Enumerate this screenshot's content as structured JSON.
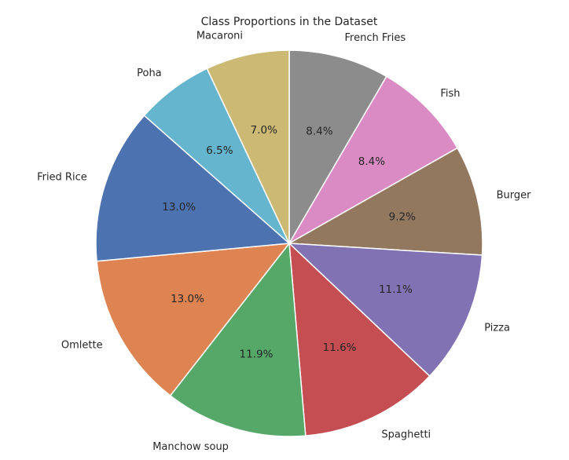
{
  "chart_data": {
    "type": "pie",
    "title": "Class Proportions in the Dataset",
    "start_angle_deg": 90,
    "direction": "clockwise",
    "slices": [
      {
        "label": "French Fries",
        "value": 8.4,
        "pct_label": "8.4%",
        "color": "#8c8c8c"
      },
      {
        "label": "Fish",
        "value": 8.4,
        "pct_label": "8.4%",
        "color": "#da8bc3"
      },
      {
        "label": "Burger",
        "value": 9.2,
        "pct_label": "9.2%",
        "color": "#937860"
      },
      {
        "label": "Pizza",
        "value": 11.1,
        "pct_label": "11.1%",
        "color": "#8172b3"
      },
      {
        "label": "Spaghetti",
        "value": 11.6,
        "pct_label": "11.6%",
        "color": "#c44e52"
      },
      {
        "label": "Manchow soup",
        "value": 11.9,
        "pct_label": "11.9%",
        "color": "#55a868"
      },
      {
        "label": "Omlette",
        "value": 13.0,
        "pct_label": "13.0%",
        "color": "#dd8452"
      },
      {
        "label": "Fried Rice",
        "value": 13.0,
        "pct_label": "13.0%",
        "color": "#4c72b0"
      },
      {
        "label": "Poha",
        "value": 6.5,
        "pct_label": "6.5%",
        "color": "#64b5cd"
      },
      {
        "label": "Macaroni",
        "value": 7.0,
        "pct_label": "7.0%",
        "color": "#ccb974"
      }
    ]
  }
}
